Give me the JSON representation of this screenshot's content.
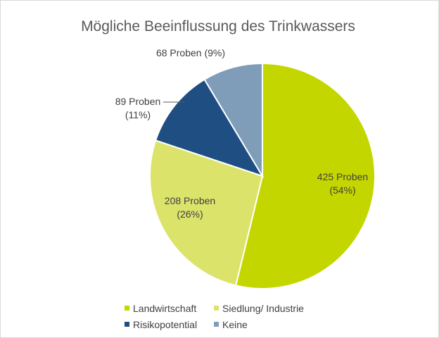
{
  "chart_data": {
    "type": "pie",
    "title": "Mögliche Beeinflussung des Trinkwassers",
    "start_angle_deg": 0,
    "direction": "clockwise",
    "slices": [
      {
        "name": "Landwirtschaft",
        "value": 425,
        "label_line1": "425 Proben",
        "label_line2": "(54%)",
        "color": "#c4d600"
      },
      {
        "name": "Siedlung/ Industrie",
        "value": 208,
        "label_line1": "208 Proben",
        "label_line2": "(26%)",
        "color": "#dce36a"
      },
      {
        "name": "Risikopotential",
        "value": 89,
        "label_line1": "89 Proben",
        "label_line2": "(11%)",
        "color": "#1f4e82"
      },
      {
        "name": "Keine",
        "value": 68,
        "label_line1": "68 Proben (9%)",
        "label_line2": "",
        "color": "#7f9cb9"
      }
    ],
    "legend": {
      "placement": "bottom",
      "rows": [
        [
          "Landwirtschaft",
          "Siedlung/ Industrie"
        ],
        [
          "Risikopotential",
          "Keine"
        ]
      ]
    }
  }
}
